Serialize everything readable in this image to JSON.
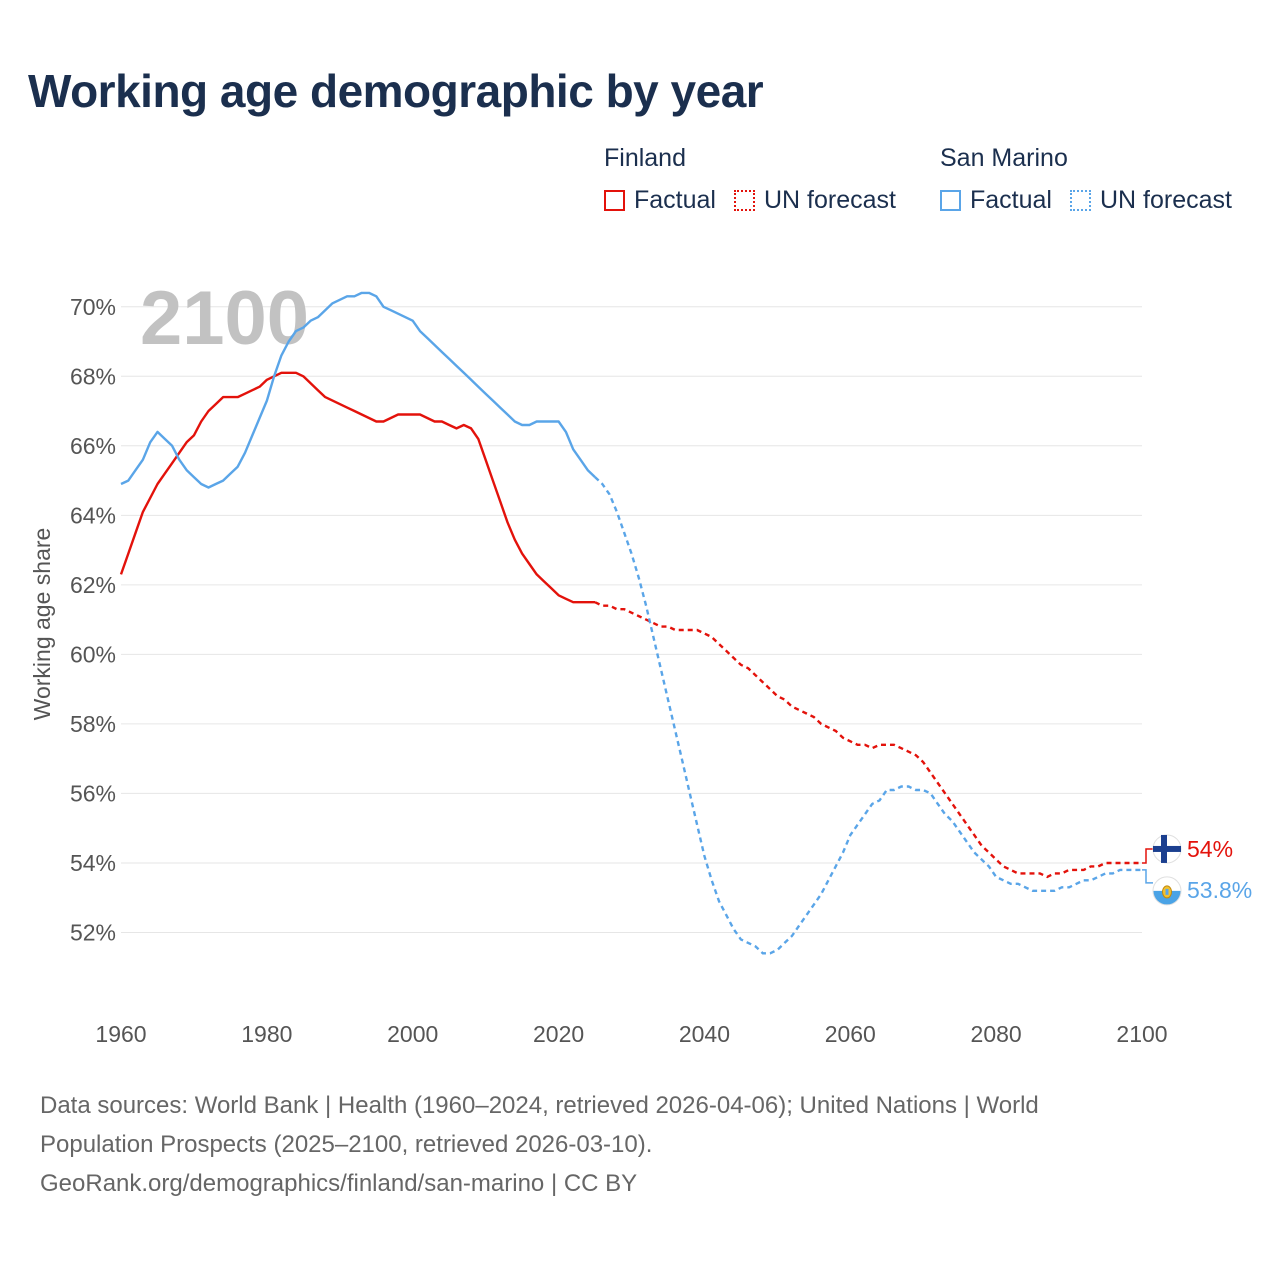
{
  "title": "Working age demographic by year",
  "current_year_label": "2100",
  "legend": {
    "groups": [
      {
        "country": "Finland",
        "color": "#e3120b",
        "factual_label": "Factual",
        "forecast_label": "UN forecast"
      },
      {
        "country": "San Marino",
        "color": "#5aa5e8",
        "factual_label": "Factual",
        "forecast_label": "UN forecast"
      }
    ]
  },
  "end_labels": {
    "finland": "54%",
    "san_marino": "53.8%"
  },
  "source": {
    "line1": "Data sources: World Bank | Health (1960–2024, retrieved 2026-04-06); United Nations | World",
    "line2": "Population Prospects (2025–2100, retrieved 2026-03-10).",
    "line3": "GeoRank.org/demographics/finland/san-marino | CC BY"
  },
  "chart_data": {
    "type": "line",
    "title": "Working age demographic by year",
    "xlabel": "",
    "ylabel": "Working age share",
    "xlim": [
      1960,
      2100
    ],
    "ylim": [
      50,
      71
    ],
    "x_ticks": [
      1960,
      1980,
      2000,
      2020,
      2040,
      2060,
      2080,
      2100
    ],
    "y_ticks": [
      52,
      54,
      56,
      58,
      60,
      62,
      64,
      66,
      68,
      70
    ],
    "y_tick_labels": [
      "52%",
      "54%",
      "56%",
      "58%",
      "60%",
      "62%",
      "64%",
      "66%",
      "68%",
      "70%"
    ],
    "x_tick_labels": [
      "1960",
      "1980",
      "2000",
      "2020",
      "2040",
      "2060",
      "2080",
      "2100"
    ],
    "grid": "horizontal",
    "legend_position": "top-right",
    "forecast_start": 2025,
    "series": [
      {
        "name": "Finland",
        "color": "#e3120b",
        "points": [
          [
            1960,
            62.3
          ],
          [
            1961,
            62.9
          ],
          [
            1962,
            63.5
          ],
          [
            1963,
            64.1
          ],
          [
            1964,
            64.5
          ],
          [
            1965,
            64.9
          ],
          [
            1966,
            65.2
          ],
          [
            1967,
            65.5
          ],
          [
            1968,
            65.8
          ],
          [
            1969,
            66.1
          ],
          [
            1970,
            66.3
          ],
          [
            1971,
            66.7
          ],
          [
            1972,
            67.0
          ],
          [
            1973,
            67.2
          ],
          [
            1974,
            67.4
          ],
          [
            1975,
            67.4
          ],
          [
            1976,
            67.4
          ],
          [
            1977,
            67.5
          ],
          [
            1978,
            67.6
          ],
          [
            1979,
            67.7
          ],
          [
            1980,
            67.9
          ],
          [
            1981,
            68.0
          ],
          [
            1982,
            68.1
          ],
          [
            1983,
            68.1
          ],
          [
            1984,
            68.1
          ],
          [
            1985,
            68.0
          ],
          [
            1986,
            67.8
          ],
          [
            1987,
            67.6
          ],
          [
            1988,
            67.4
          ],
          [
            1989,
            67.3
          ],
          [
            1990,
            67.2
          ],
          [
            1991,
            67.1
          ],
          [
            1992,
            67.0
          ],
          [
            1993,
            66.9
          ],
          [
            1994,
            66.8
          ],
          [
            1995,
            66.7
          ],
          [
            1996,
            66.7
          ],
          [
            1997,
            66.8
          ],
          [
            1998,
            66.9
          ],
          [
            1999,
            66.9
          ],
          [
            2000,
            66.9
          ],
          [
            2001,
            66.9
          ],
          [
            2002,
            66.8
          ],
          [
            2003,
            66.7
          ],
          [
            2004,
            66.7
          ],
          [
            2005,
            66.6
          ],
          [
            2006,
            66.5
          ],
          [
            2007,
            66.6
          ],
          [
            2008,
            66.5
          ],
          [
            2009,
            66.2
          ],
          [
            2010,
            65.6
          ],
          [
            2011,
            65.0
          ],
          [
            2012,
            64.4
          ],
          [
            2013,
            63.8
          ],
          [
            2014,
            63.3
          ],
          [
            2015,
            62.9
          ],
          [
            2016,
            62.6
          ],
          [
            2017,
            62.3
          ],
          [
            2018,
            62.1
          ],
          [
            2019,
            61.9
          ],
          [
            2020,
            61.7
          ],
          [
            2021,
            61.6
          ],
          [
            2022,
            61.5
          ],
          [
            2023,
            61.5
          ],
          [
            2024,
            61.5
          ],
          [
            2025,
            61.5
          ],
          [
            2026,
            61.4
          ],
          [
            2027,
            61.4
          ],
          [
            2028,
            61.3
          ],
          [
            2029,
            61.3
          ],
          [
            2030,
            61.2
          ],
          [
            2031,
            61.1
          ],
          [
            2032,
            61.0
          ],
          [
            2033,
            60.9
          ],
          [
            2034,
            60.8
          ],
          [
            2035,
            60.8
          ],
          [
            2036,
            60.7
          ],
          [
            2037,
            60.7
          ],
          [
            2038,
            60.7
          ],
          [
            2039,
            60.7
          ],
          [
            2040,
            60.6
          ],
          [
            2041,
            60.5
          ],
          [
            2042,
            60.3
          ],
          [
            2043,
            60.1
          ],
          [
            2044,
            59.9
          ],
          [
            2045,
            59.7
          ],
          [
            2046,
            59.6
          ],
          [
            2047,
            59.4
          ],
          [
            2048,
            59.2
          ],
          [
            2049,
            59.0
          ],
          [
            2050,
            58.8
          ],
          [
            2051,
            58.7
          ],
          [
            2052,
            58.5
          ],
          [
            2053,
            58.4
          ],
          [
            2054,
            58.3
          ],
          [
            2055,
            58.2
          ],
          [
            2056,
            58.0
          ],
          [
            2057,
            57.9
          ],
          [
            2058,
            57.8
          ],
          [
            2059,
            57.6
          ],
          [
            2060,
            57.5
          ],
          [
            2061,
            57.4
          ],
          [
            2062,
            57.4
          ],
          [
            2063,
            57.3
          ],
          [
            2064,
            57.4
          ],
          [
            2065,
            57.4
          ],
          [
            2066,
            57.4
          ],
          [
            2067,
            57.3
          ],
          [
            2068,
            57.2
          ],
          [
            2069,
            57.1
          ],
          [
            2070,
            56.9
          ],
          [
            2071,
            56.6
          ],
          [
            2072,
            56.3
          ],
          [
            2073,
            56.0
          ],
          [
            2074,
            55.7
          ],
          [
            2075,
            55.4
          ],
          [
            2076,
            55.1
          ],
          [
            2077,
            54.8
          ],
          [
            2078,
            54.5
          ],
          [
            2079,
            54.3
          ],
          [
            2080,
            54.1
          ],
          [
            2081,
            53.9
          ],
          [
            2082,
            53.8
          ],
          [
            2083,
            53.7
          ],
          [
            2084,
            53.7
          ],
          [
            2085,
            53.7
          ],
          [
            2086,
            53.7
          ],
          [
            2087,
            53.6
          ],
          [
            2088,
            53.7
          ],
          [
            2089,
            53.7
          ],
          [
            2090,
            53.8
          ],
          [
            2091,
            53.8
          ],
          [
            2092,
            53.8
          ],
          [
            2093,
            53.9
          ],
          [
            2094,
            53.9
          ],
          [
            2095,
            54.0
          ],
          [
            2096,
            54.0
          ],
          [
            2097,
            54.0
          ],
          [
            2098,
            54.0
          ],
          [
            2099,
            54.0
          ],
          [
            2100,
            54.0
          ]
        ]
      },
      {
        "name": "San Marino",
        "color": "#5aa5e8",
        "points": [
          [
            1960,
            64.9
          ],
          [
            1961,
            65.0
          ],
          [
            1962,
            65.3
          ],
          [
            1963,
            65.6
          ],
          [
            1964,
            66.1
          ],
          [
            1965,
            66.4
          ],
          [
            1966,
            66.2
          ],
          [
            1967,
            66.0
          ],
          [
            1968,
            65.6
          ],
          [
            1969,
            65.3
          ],
          [
            1970,
            65.1
          ],
          [
            1971,
            64.9
          ],
          [
            1972,
            64.8
          ],
          [
            1973,
            64.9
          ],
          [
            1974,
            65.0
          ],
          [
            1975,
            65.2
          ],
          [
            1976,
            65.4
          ],
          [
            1977,
            65.8
          ],
          [
            1978,
            66.3
          ],
          [
            1979,
            66.8
          ],
          [
            1980,
            67.3
          ],
          [
            1981,
            68.0
          ],
          [
            1982,
            68.6
          ],
          [
            1983,
            69.0
          ],
          [
            1984,
            69.3
          ],
          [
            1985,
            69.4
          ],
          [
            1986,
            69.6
          ],
          [
            1987,
            69.7
          ],
          [
            1988,
            69.9
          ],
          [
            1989,
            70.1
          ],
          [
            1990,
            70.2
          ],
          [
            1991,
            70.3
          ],
          [
            1992,
            70.3
          ],
          [
            1993,
            70.4
          ],
          [
            1994,
            70.4
          ],
          [
            1995,
            70.3
          ],
          [
            1996,
            70.0
          ],
          [
            1997,
            69.9
          ],
          [
            1998,
            69.8
          ],
          [
            1999,
            69.7
          ],
          [
            2000,
            69.6
          ],
          [
            2001,
            69.3
          ],
          [
            2002,
            69.1
          ],
          [
            2003,
            68.9
          ],
          [
            2004,
            68.7
          ],
          [
            2005,
            68.5
          ],
          [
            2006,
            68.3
          ],
          [
            2007,
            68.1
          ],
          [
            2008,
            67.9
          ],
          [
            2009,
            67.7
          ],
          [
            2010,
            67.5
          ],
          [
            2011,
            67.3
          ],
          [
            2012,
            67.1
          ],
          [
            2013,
            66.9
          ],
          [
            2014,
            66.7
          ],
          [
            2015,
            66.6
          ],
          [
            2016,
            66.6
          ],
          [
            2017,
            66.7
          ],
          [
            2018,
            66.7
          ],
          [
            2019,
            66.7
          ],
          [
            2020,
            66.7
          ],
          [
            2021,
            66.4
          ],
          [
            2022,
            65.9
          ],
          [
            2023,
            65.6
          ],
          [
            2024,
            65.3
          ],
          [
            2025,
            65.1
          ],
          [
            2026,
            64.9
          ],
          [
            2027,
            64.6
          ],
          [
            2028,
            64.1
          ],
          [
            2029,
            63.5
          ],
          [
            2030,
            62.9
          ],
          [
            2031,
            62.2
          ],
          [
            2032,
            61.4
          ],
          [
            2033,
            60.5
          ],
          [
            2034,
            59.6
          ],
          [
            2035,
            58.7
          ],
          [
            2036,
            57.8
          ],
          [
            2037,
            56.9
          ],
          [
            2038,
            56.0
          ],
          [
            2039,
            55.1
          ],
          [
            2040,
            54.2
          ],
          [
            2041,
            53.5
          ],
          [
            2042,
            52.9
          ],
          [
            2043,
            52.5
          ],
          [
            2044,
            52.1
          ],
          [
            2045,
            51.8
          ],
          [
            2046,
            51.7
          ],
          [
            2047,
            51.6
          ],
          [
            2048,
            51.4
          ],
          [
            2049,
            51.4
          ],
          [
            2050,
            51.5
          ],
          [
            2051,
            51.7
          ],
          [
            2052,
            51.9
          ],
          [
            2053,
            52.2
          ],
          [
            2054,
            52.5
          ],
          [
            2055,
            52.8
          ],
          [
            2056,
            53.1
          ],
          [
            2057,
            53.5
          ],
          [
            2058,
            53.9
          ],
          [
            2059,
            54.3
          ],
          [
            2060,
            54.8
          ],
          [
            2061,
            55.1
          ],
          [
            2062,
            55.4
          ],
          [
            2063,
            55.7
          ],
          [
            2064,
            55.8
          ],
          [
            2065,
            56.1
          ],
          [
            2066,
            56.1
          ],
          [
            2067,
            56.2
          ],
          [
            2068,
            56.2
          ],
          [
            2069,
            56.1
          ],
          [
            2070,
            56.1
          ],
          [
            2071,
            56.0
          ],
          [
            2072,
            55.7
          ],
          [
            2073,
            55.4
          ],
          [
            2074,
            55.2
          ],
          [
            2075,
            54.9
          ],
          [
            2076,
            54.6
          ],
          [
            2077,
            54.3
          ],
          [
            2078,
            54.1
          ],
          [
            2079,
            53.9
          ],
          [
            2080,
            53.6
          ],
          [
            2081,
            53.5
          ],
          [
            2082,
            53.4
          ],
          [
            2083,
            53.4
          ],
          [
            2084,
            53.3
          ],
          [
            2085,
            53.2
          ],
          [
            2086,
            53.2
          ],
          [
            2087,
            53.2
          ],
          [
            2088,
            53.2
          ],
          [
            2089,
            53.3
          ],
          [
            2090,
            53.3
          ],
          [
            2091,
            53.4
          ],
          [
            2092,
            53.5
          ],
          [
            2093,
            53.5
          ],
          [
            2094,
            53.6
          ],
          [
            2095,
            53.7
          ],
          [
            2096,
            53.7
          ],
          [
            2097,
            53.8
          ],
          [
            2098,
            53.8
          ],
          [
            2099,
            53.8
          ],
          [
            2100,
            53.8
          ]
        ]
      }
    ]
  }
}
